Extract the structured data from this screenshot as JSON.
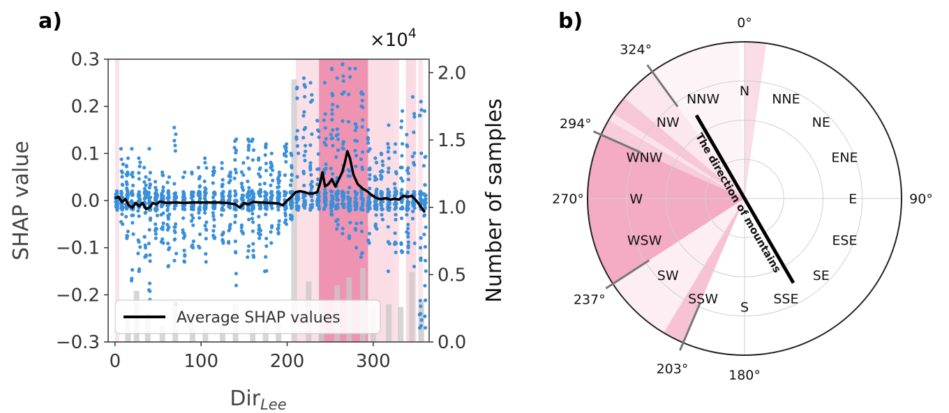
{
  "chart_data": [
    {
      "panel": "a)",
      "type": "scatter",
      "xlabel": "Dir",
      "xlabel_subscript": "Lee",
      "ylabel": "SHAP value",
      "y2label": "Number of samples",
      "y2_multiplier": "×10",
      "y2_multiplier_exp": "4",
      "xlim": [
        -8,
        365
      ],
      "ylim": [
        -0.3,
        0.3
      ],
      "y2lim": [
        0,
        2.1
      ],
      "xticks": [
        "0",
        "100",
        "200",
        "300"
      ],
      "xtick_values": [
        0,
        100,
        200,
        300
      ],
      "yticks": [
        "−0.3",
        "−0.2",
        "−0.1",
        "0.0",
        "0.1",
        "0.2",
        "0.3"
      ],
      "ytick_values": [
        -0.3,
        -0.2,
        -0.1,
        0.0,
        0.1,
        0.2,
        0.3
      ],
      "y2ticks": [
        "0.0",
        "0.5",
        "1.0",
        "1.5",
        "2.0"
      ],
      "y2tick_values": [
        0,
        0.5,
        1.0,
        1.5,
        2.0
      ],
      "legend": {
        "label": "Average SHAP values",
        "placement": "lower-left"
      },
      "colors": {
        "points": "#3a8fd9",
        "average": "#000000",
        "shade": "#f7c6d4",
        "shade_dark": "#ef93b3",
        "hist": "#c8c8c8"
      },
      "highlight_ranges": [
        {
          "x0": 0,
          "x1": 5,
          "strength": 0.3
        },
        {
          "x0": 210,
          "x1": 237,
          "strength": 0.35
        },
        {
          "x0": 237,
          "x1": 294,
          "strength": 1.0
        },
        {
          "x0": 294,
          "x1": 324,
          "strength": 0.4
        },
        {
          "x0": 324,
          "x1": 330,
          "strength": 0.35
        },
        {
          "x0": 338,
          "x1": 350,
          "strength": 0.45
        },
        {
          "x0": 352,
          "x1": 358,
          "strength": 0.25
        }
      ],
      "sample_counts": [
        {
          "x": 15,
          "v": 0.18
        },
        {
          "x": 25,
          "v": 0.38
        },
        {
          "x": 38,
          "v": 0.22
        },
        {
          "x": 55,
          "v": 0.12
        },
        {
          "x": 70,
          "v": 0.3
        },
        {
          "x": 90,
          "v": 0.14
        },
        {
          "x": 105,
          "v": 0.1
        },
        {
          "x": 125,
          "v": 0.12
        },
        {
          "x": 140,
          "v": 0.28
        },
        {
          "x": 160,
          "v": 0.12
        },
        {
          "x": 175,
          "v": 0.2
        },
        {
          "x": 190,
          "v": 0.14
        },
        {
          "x": 208,
          "v": 1.95
        },
        {
          "x": 225,
          "v": 0.45
        },
        {
          "x": 240,
          "v": 0.3
        },
        {
          "x": 258,
          "v": 0.42
        },
        {
          "x": 272,
          "v": 0.48
        },
        {
          "x": 288,
          "v": 0.55
        },
        {
          "x": 300,
          "v": 0.25
        },
        {
          "x": 318,
          "v": 0.28
        },
        {
          "x": 332,
          "v": 0.26
        },
        {
          "x": 345,
          "v": 0.52
        },
        {
          "x": 356,
          "v": 0.3
        }
      ],
      "columns": [
        {
          "x": 2,
          "lo": -0.02,
          "hi": 0.02
        },
        {
          "x": 8,
          "lo": -0.05,
          "hi": 0.11
        },
        {
          "x": 14,
          "lo": -0.08,
          "hi": 0.09
        },
        {
          "x": 20,
          "lo": -0.17,
          "hi": 0.11
        },
        {
          "x": 28,
          "lo": -0.15,
          "hi": 0.09
        },
        {
          "x": 35,
          "lo": -0.12,
          "hi": 0.07
        },
        {
          "x": 40,
          "lo": -0.21,
          "hi": 0.11
        },
        {
          "x": 48,
          "lo": -0.08,
          "hi": 0.04
        },
        {
          "x": 55,
          "lo": -0.09,
          "hi": 0.06
        },
        {
          "x": 62,
          "lo": -0.14,
          "hi": 0.05
        },
        {
          "x": 70,
          "lo": -0.22,
          "hi": 0.155
        },
        {
          "x": 80,
          "lo": -0.13,
          "hi": 0.06
        },
        {
          "x": 90,
          "lo": -0.1,
          "hi": 0.06
        },
        {
          "x": 98,
          "lo": -0.1,
          "hi": 0.07
        },
        {
          "x": 105,
          "lo": -0.13,
          "hi": 0.09
        },
        {
          "x": 115,
          "lo": -0.08,
          "hi": 0.07
        },
        {
          "x": 125,
          "lo": -0.09,
          "hi": 0.08
        },
        {
          "x": 133,
          "lo": -0.09,
          "hi": 0.06
        },
        {
          "x": 140,
          "lo": -0.18,
          "hi": 0.13
        },
        {
          "x": 148,
          "lo": -0.07,
          "hi": 0.08
        },
        {
          "x": 155,
          "lo": -0.12,
          "hi": 0.13
        },
        {
          "x": 160,
          "lo": -0.12,
          "hi": 0.13
        },
        {
          "x": 168,
          "lo": -0.08,
          "hi": 0.09
        },
        {
          "x": 175,
          "lo": -0.15,
          "hi": 0.12
        },
        {
          "x": 182,
          "lo": -0.09,
          "hi": 0.1
        },
        {
          "x": 190,
          "lo": -0.07,
          "hi": 0.06
        },
        {
          "x": 198,
          "lo": -0.05,
          "hi": 0.12
        },
        {
          "x": 205,
          "lo": -0.04,
          "hi": 0.1
        },
        {
          "x": 212,
          "lo": -0.02,
          "hi": 0.24
        },
        {
          "x": 220,
          "lo": 0.0,
          "hi": 0.26
        },
        {
          "x": 228,
          "lo": -0.02,
          "hi": 0.25
        },
        {
          "x": 236,
          "lo": 0.0,
          "hi": 0.17
        },
        {
          "x": 244,
          "lo": 0.0,
          "hi": 0.25
        },
        {
          "x": 252,
          "lo": -0.03,
          "hi": 0.28
        },
        {
          "x": 258,
          "lo": -0.06,
          "hi": 0.26
        },
        {
          "x": 265,
          "lo": -0.07,
          "hi": 0.29
        },
        {
          "x": 272,
          "lo": -0.08,
          "hi": 0.28
        },
        {
          "x": 280,
          "lo": -0.1,
          "hi": 0.28
        },
        {
          "x": 287,
          "lo": -0.12,
          "hi": 0.23
        },
        {
          "x": 295,
          "lo": -0.09,
          "hi": 0.15
        },
        {
          "x": 303,
          "lo": -0.06,
          "hi": 0.09
        },
        {
          "x": 310,
          "lo": -0.04,
          "hi": 0.1
        },
        {
          "x": 318,
          "lo": -0.15,
          "hi": 0.16
        },
        {
          "x": 326,
          "lo": -0.11,
          "hi": 0.12
        },
        {
          "x": 333,
          "lo": -0.11,
          "hi": 0.19
        },
        {
          "x": 340,
          "lo": -0.11,
          "hi": 0.14
        },
        {
          "x": 347,
          "lo": -0.14,
          "hi": 0.22
        },
        {
          "x": 355,
          "lo": -0.27,
          "hi": 0.21
        },
        {
          "x": 360,
          "lo": -0.27,
          "hi": 0.19
        }
      ],
      "average_shap": [
        {
          "x": 0,
          "y": 0.005
        },
        {
          "x": 4,
          "y": 0.008
        },
        {
          "x": 8,
          "y": -0.003
        },
        {
          "x": 12,
          "y": 0.003
        },
        {
          "x": 16,
          "y": -0.01
        },
        {
          "x": 20,
          "y": -0.015
        },
        {
          "x": 24,
          "y": -0.005
        },
        {
          "x": 28,
          "y": -0.012
        },
        {
          "x": 32,
          "y": -0.005
        },
        {
          "x": 36,
          "y": -0.018
        },
        {
          "x": 40,
          "y": -0.015
        },
        {
          "x": 44,
          "y": -0.005
        },
        {
          "x": 48,
          "y": -0.008
        },
        {
          "x": 52,
          "y": -0.002
        },
        {
          "x": 60,
          "y": -0.005
        },
        {
          "x": 70,
          "y": -0.004
        },
        {
          "x": 80,
          "y": -0.005
        },
        {
          "x": 90,
          "y": -0.004
        },
        {
          "x": 100,
          "y": -0.004
        },
        {
          "x": 110,
          "y": -0.004
        },
        {
          "x": 120,
          "y": -0.004
        },
        {
          "x": 130,
          "y": -0.005
        },
        {
          "x": 140,
          "y": -0.008
        },
        {
          "x": 145,
          "y": -0.015
        },
        {
          "x": 150,
          "y": -0.005
        },
        {
          "x": 155,
          "y": -0.008
        },
        {
          "x": 160,
          "y": -0.003
        },
        {
          "x": 170,
          "y": -0.004
        },
        {
          "x": 180,
          "y": -0.005
        },
        {
          "x": 190,
          "y": -0.006
        },
        {
          "x": 195,
          "y": -0.01
        },
        {
          "x": 200,
          "y": 0.0
        },
        {
          "x": 205,
          "y": 0.008
        },
        {
          "x": 210,
          "y": 0.018
        },
        {
          "x": 215,
          "y": 0.02
        },
        {
          "x": 220,
          "y": 0.018
        },
        {
          "x": 225,
          "y": 0.015
        },
        {
          "x": 230,
          "y": 0.015
        },
        {
          "x": 235,
          "y": 0.018
        },
        {
          "x": 238,
          "y": 0.035
        },
        {
          "x": 241,
          "y": 0.06
        },
        {
          "x": 244,
          "y": 0.03
        },
        {
          "x": 248,
          "y": 0.035
        },
        {
          "x": 252,
          "y": 0.045
        },
        {
          "x": 256,
          "y": 0.03
        },
        {
          "x": 260,
          "y": 0.045
        },
        {
          "x": 264,
          "y": 0.06
        },
        {
          "x": 267,
          "y": 0.08
        },
        {
          "x": 270,
          "y": 0.105
        },
        {
          "x": 273,
          "y": 0.09
        },
        {
          "x": 277,
          "y": 0.055
        },
        {
          "x": 282,
          "y": 0.035
        },
        {
          "x": 288,
          "y": 0.025
        },
        {
          "x": 293,
          "y": 0.02
        },
        {
          "x": 298,
          "y": 0.012
        },
        {
          "x": 303,
          "y": 0.006
        },
        {
          "x": 308,
          "y": 0.003
        },
        {
          "x": 315,
          "y": 0.005
        },
        {
          "x": 320,
          "y": 0.002
        },
        {
          "x": 325,
          "y": 0.004
        },
        {
          "x": 330,
          "y": 0.002
        },
        {
          "x": 335,
          "y": 0.01
        },
        {
          "x": 340,
          "y": 0.008
        },
        {
          "x": 345,
          "y": 0.01
        },
        {
          "x": 350,
          "y": 0.0
        },
        {
          "x": 355,
          "y": -0.012
        },
        {
          "x": 360,
          "y": -0.025
        }
      ]
    },
    {
      "panel": "b)",
      "type": "polar",
      "rings": 4,
      "direction_labels": [
        {
          "label": "N",
          "deg": 0
        },
        {
          "label": "NNE",
          "deg": 22.5
        },
        {
          "label": "NE",
          "deg": 45
        },
        {
          "label": "ENE",
          "deg": 67.5
        },
        {
          "label": "E",
          "deg": 90
        },
        {
          "label": "ESE",
          "deg": 112.5
        },
        {
          "label": "SE",
          "deg": 135
        },
        {
          "label": "SSE",
          "deg": 157.5
        },
        {
          "label": "S",
          "deg": 180
        },
        {
          "label": "SSW",
          "deg": 202.5
        },
        {
          "label": "SW",
          "deg": 225
        },
        {
          "label": "WSW",
          "deg": 247.5
        },
        {
          "label": "W",
          "deg": 270
        },
        {
          "label": "WNW",
          "deg": 292.5
        },
        {
          "label": "NW",
          "deg": 315
        },
        {
          "label": "NNW",
          "deg": 337.5
        }
      ],
      "axis_angles": [
        {
          "label": "0°",
          "deg": 0
        },
        {
          "label": "90°",
          "deg": 90
        },
        {
          "label": "180°",
          "deg": 180
        },
        {
          "label": "270°",
          "deg": 270
        }
      ],
      "marked_angles": [
        {
          "label": "203°",
          "deg": 203
        },
        {
          "label": "237°",
          "deg": 237
        },
        {
          "label": "294°",
          "deg": 294
        },
        {
          "label": "324°",
          "deg": 324
        }
      ],
      "sectors": [
        {
          "from": 203,
          "to": 211,
          "strength": 0.55
        },
        {
          "from": 211,
          "to": 237,
          "strength": 0.15
        },
        {
          "from": 237,
          "to": 294,
          "strength": 0.75
        },
        {
          "from": 294,
          "to": 300,
          "strength": 0.45
        },
        {
          "from": 300,
          "to": 303,
          "strength": 0.25
        },
        {
          "from": 303,
          "to": 310,
          "strength": 0.5
        },
        {
          "from": 310,
          "to": 324,
          "strength": 0.22
        },
        {
          "from": 324,
          "to": 358,
          "strength": 0.1
        },
        {
          "from": 0,
          "to": 8,
          "strength": 0.3
        }
      ],
      "mountain_line": {
        "label": "The direction of mountains",
        "from_deg": 330,
        "to_deg": 150
      }
    }
  ]
}
